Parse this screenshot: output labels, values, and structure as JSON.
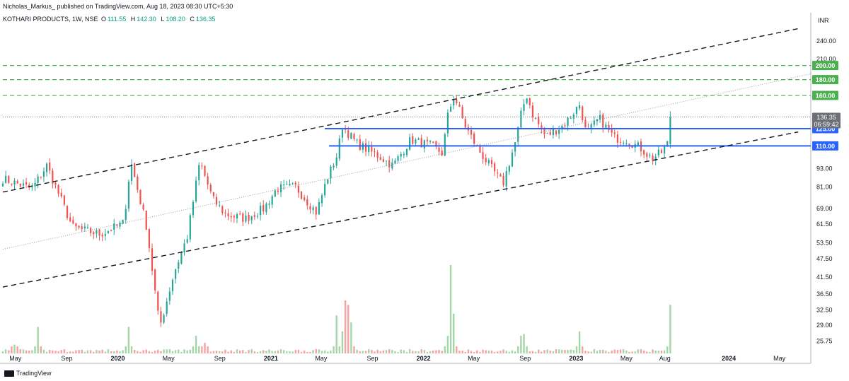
{
  "header": {
    "published_by": "Nicholas_Markus_ published on TradingView.com, Aug 18, 2023 08:30 UTC+5:30"
  },
  "symbol": {
    "name": "KOTHARI PRODUCTS, 1W, NSE",
    "o_label": "O",
    "o_value": "111.55",
    "h_label": "H",
    "h_value": "142.30",
    "l_label": "L",
    "l_value": "108.20",
    "c_label": "C",
    "c_value": "136.35"
  },
  "currency": "INR",
  "footer": {
    "brand": "TradingView"
  },
  "colors": {
    "up": "#26a69a",
    "down": "#ef5350",
    "vol_up": "#a5d6a7",
    "vol_down": "#f5a3a3",
    "blue_line": "#2962ff",
    "green_dash": "#4caf50",
    "black_dash": "#131722"
  },
  "chart_data": {
    "type": "candlestick",
    "scale": "log",
    "ylim": [
      23.5,
      275
    ],
    "xlim": [
      "2019-04-01",
      "2024-07-15"
    ],
    "y_ticks": [
      "240.00",
      "210.00",
      "93.00",
      "81.00",
      "69.00",
      "61.50",
      "53.50",
      "47.50",
      "41.50",
      "36.50",
      "32.50",
      "29.00",
      "25.75"
    ],
    "x_ticks": [
      {
        "label": "May",
        "date": "2019-05-01"
      },
      {
        "label": "Sep",
        "date": "2019-09-01"
      },
      {
        "label": "2020",
        "date": "2020-01-01"
      },
      {
        "label": "May",
        "date": "2020-05-01"
      },
      {
        "label": "Sep",
        "date": "2020-09-01"
      },
      {
        "label": "2021",
        "date": "2021-01-01"
      },
      {
        "label": "May",
        "date": "2021-05-01"
      },
      {
        "label": "Sep",
        "date": "2021-09-01"
      },
      {
        "label": "2022",
        "date": "2022-01-01"
      },
      {
        "label": "May",
        "date": "2022-05-01"
      },
      {
        "label": "Sep",
        "date": "2022-09-01"
      },
      {
        "label": "2023",
        "date": "2023-01-01"
      },
      {
        "label": "May",
        "date": "2023-05-01"
      },
      {
        "label": "Aug",
        "date": "2023-08-01"
      },
      {
        "label": "2024",
        "date": "2024-01-01"
      },
      {
        "label": "May",
        "date": "2024-05-01"
      }
    ],
    "price_badges": [
      {
        "label": "200.00",
        "value": 200,
        "color": "#4caf50"
      },
      {
        "label": "180.00",
        "value": 180,
        "color": "#4caf50"
      },
      {
        "label": "160.00",
        "value": 160,
        "color": "#4caf50"
      },
      {
        "label": "125.00",
        "value": 125,
        "color": "#2962ff"
      },
      {
        "label": "110.00",
        "value": 110,
        "color": "#2962ff"
      }
    ],
    "last_price": {
      "label": "136.35",
      "value": 136.35,
      "countdown": "06:59:42"
    },
    "horizontal_levels": [
      {
        "value": 200,
        "style": "green-dashed"
      },
      {
        "value": 180,
        "style": "green-dashed"
      },
      {
        "value": 160,
        "style": "green-dashed"
      },
      {
        "value": 125,
        "style": "blue-solid",
        "from": "2021-05-10"
      },
      {
        "value": 110,
        "style": "blue-solid",
        "from": "2021-05-20"
      }
    ],
    "trend_lines": [
      {
        "name": "channel-upper",
        "style": "black-dashed",
        "p1": [
          "2019-04-01",
          78
        ],
        "p2": [
          "2024-06-15",
          263
        ]
      },
      {
        "name": "channel-lower",
        "style": "black-dashed",
        "p1": [
          "2019-04-01",
          38.5
        ],
        "p2": [
          "2024-06-15",
          122
        ]
      },
      {
        "name": "mid-line",
        "style": "gray-dotted",
        "p1": [
          "2019-04-01",
          51
        ],
        "p2": [
          "2024-07-15",
          188
        ]
      }
    ],
    "key_points": [
      [
        "2019-04-01",
        86
      ],
      [
        "2019-06-10",
        80
      ],
      [
        "2019-07-15",
        95
      ],
      [
        "2019-09-15",
        60
      ],
      [
        "2019-11-20",
        57
      ],
      [
        "2020-01-15",
        62
      ],
      [
        "2020-02-01",
        98
      ],
      [
        "2020-03-10",
        60
      ],
      [
        "2020-04-10",
        28.5
      ],
      [
        "2020-05-15",
        43
      ],
      [
        "2020-06-15",
        56
      ],
      [
        "2020-07-15",
        98
      ],
      [
        "2020-08-15",
        74
      ],
      [
        "2020-09-15",
        66
      ],
      [
        "2020-11-01",
        64
      ],
      [
        "2020-12-15",
        69
      ],
      [
        "2021-01-15",
        80
      ],
      [
        "2021-03-01",
        81
      ],
      [
        "2021-04-20",
        67
      ],
      [
        "2021-05-15",
        86
      ],
      [
        "2021-06-10",
        104
      ],
      [
        "2021-06-20",
        128
      ],
      [
        "2021-07-25",
        112
      ],
      [
        "2021-09-15",
        102
      ],
      [
        "2021-10-20",
        95
      ],
      [
        "2021-12-01",
        115
      ],
      [
        "2022-01-20",
        110
      ],
      [
        "2022-02-15",
        104
      ],
      [
        "2022-03-01",
        140
      ],
      [
        "2022-03-15",
        160
      ],
      [
        "2022-04-10",
        128
      ],
      [
        "2022-05-10",
        108
      ],
      [
        "2022-06-10",
        94
      ],
      [
        "2022-07-10",
        83
      ],
      [
        "2022-08-10",
        115
      ],
      [
        "2022-08-25",
        145
      ],
      [
        "2022-09-05",
        160
      ],
      [
        "2022-09-20",
        138
      ],
      [
        "2022-10-20",
        118
      ],
      [
        "2022-12-01",
        128
      ],
      [
        "2023-01-10",
        150
      ],
      [
        "2023-01-25",
        120
      ],
      [
        "2023-02-25",
        135
      ],
      [
        "2023-04-01",
        117
      ],
      [
        "2023-05-01",
        115
      ],
      [
        "2023-06-05",
        108
      ],
      [
        "2023-07-01",
        100
      ],
      [
        "2023-07-25",
        105
      ],
      [
        "2023-08-07",
        111.55
      ],
      [
        "2023-08-14",
        136.35
      ]
    ],
    "volume_spikes": [
      {
        "date": "2019-05-01",
        "level": 0.1
      },
      {
        "date": "2019-06-25",
        "level": 0.3
      },
      {
        "date": "2020-02-01",
        "level": 0.3
      },
      {
        "date": "2020-07-10",
        "level": 0.2
      },
      {
        "date": "2020-08-01",
        "level": 0.12
      },
      {
        "date": "2021-06-08",
        "level": 0.43
      },
      {
        "date": "2021-06-24",
        "level": 0.25
      },
      {
        "date": "2021-07-01",
        "level": 0.6
      },
      {
        "date": "2021-07-08",
        "level": 0.55
      },
      {
        "date": "2021-07-15",
        "level": 0.35
      },
      {
        "date": "2022-03-01",
        "level": 0.2
      },
      {
        "date": "2022-03-08",
        "level": 1.0
      },
      {
        "date": "2022-03-15",
        "level": 0.45
      },
      {
        "date": "2022-08-25",
        "level": 0.2
      },
      {
        "date": "2022-09-01",
        "level": 0.22
      },
      {
        "date": "2023-01-10",
        "level": 0.25
      },
      {
        "date": "2023-08-14",
        "level": 0.55
      }
    ]
  }
}
